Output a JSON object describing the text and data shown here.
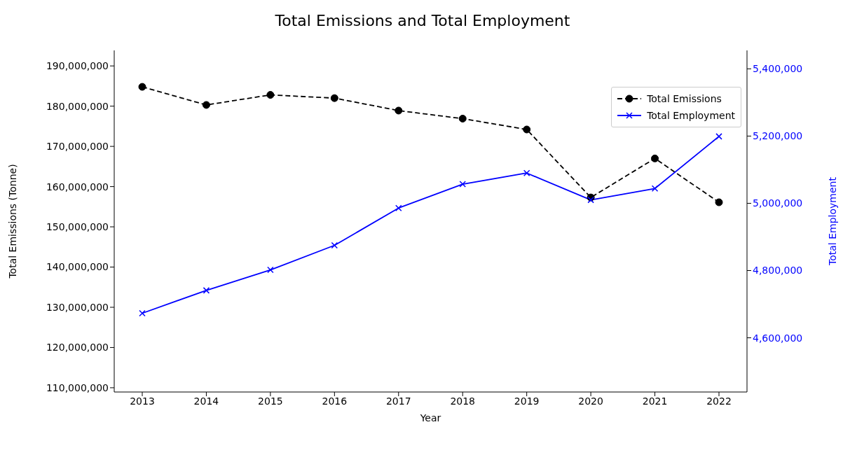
{
  "chart_data": {
    "type": "line",
    "title": "Total Emissions and Total Employment",
    "xlabel": "Year",
    "ylabel": "Total Emissions (Tonne)",
    "y2label": "Total Employment",
    "categories": [
      "2013",
      "2014",
      "2015",
      "2016",
      "2017",
      "2018",
      "2019",
      "2020",
      "2021",
      "2022"
    ],
    "series": [
      {
        "name": "Total Emissions",
        "color": "#000000",
        "marker": "circle",
        "line_style": "dashed",
        "values": [
          184800000,
          180300000,
          182800000,
          182000000,
          178900000,
          176900000,
          174200000,
          157300000,
          167000000,
          156100000
        ]
      },
      {
        "name": "Total Employment",
        "color": "#0000ff",
        "marker": "cross",
        "line_style": "solid",
        "axis": "y2",
        "values": [
          4673000,
          4741000,
          4802000,
          4875000,
          4986000,
          5057000,
          5090000,
          5010000,
          5044000,
          5199000
        ]
      }
    ],
    "ylim": [
      108940000,
      193860000
    ],
    "yticks": [
      {
        "value": 110000000,
        "label": "110,000,000"
      },
      {
        "value": 120000000,
        "label": "120,000,000"
      },
      {
        "value": 130000000,
        "label": "130,000,000"
      },
      {
        "value": 140000000,
        "label": "140,000,000"
      },
      {
        "value": 150000000,
        "label": "150,000,000"
      },
      {
        "value": 160000000,
        "label": "160,000,000"
      },
      {
        "value": 170000000,
        "label": "170,000,000"
      },
      {
        "value": 180000000,
        "label": "180,000,000"
      },
      {
        "value": 190000000,
        "label": "190,000,000"
      }
    ],
    "y2lim": [
      4438800,
      5454800
    ],
    "y2ticks": [
      {
        "value": 4600000,
        "label": "4,600,000"
      },
      {
        "value": 4800000,
        "label": "4,800,000"
      },
      {
        "value": 5000000,
        "label": "5,000,000"
      },
      {
        "value": 5200000,
        "label": "5,200,000"
      },
      {
        "value": 5400000,
        "label": "5,400,000"
      }
    ],
    "grid": false,
    "legend": "top right"
  }
}
